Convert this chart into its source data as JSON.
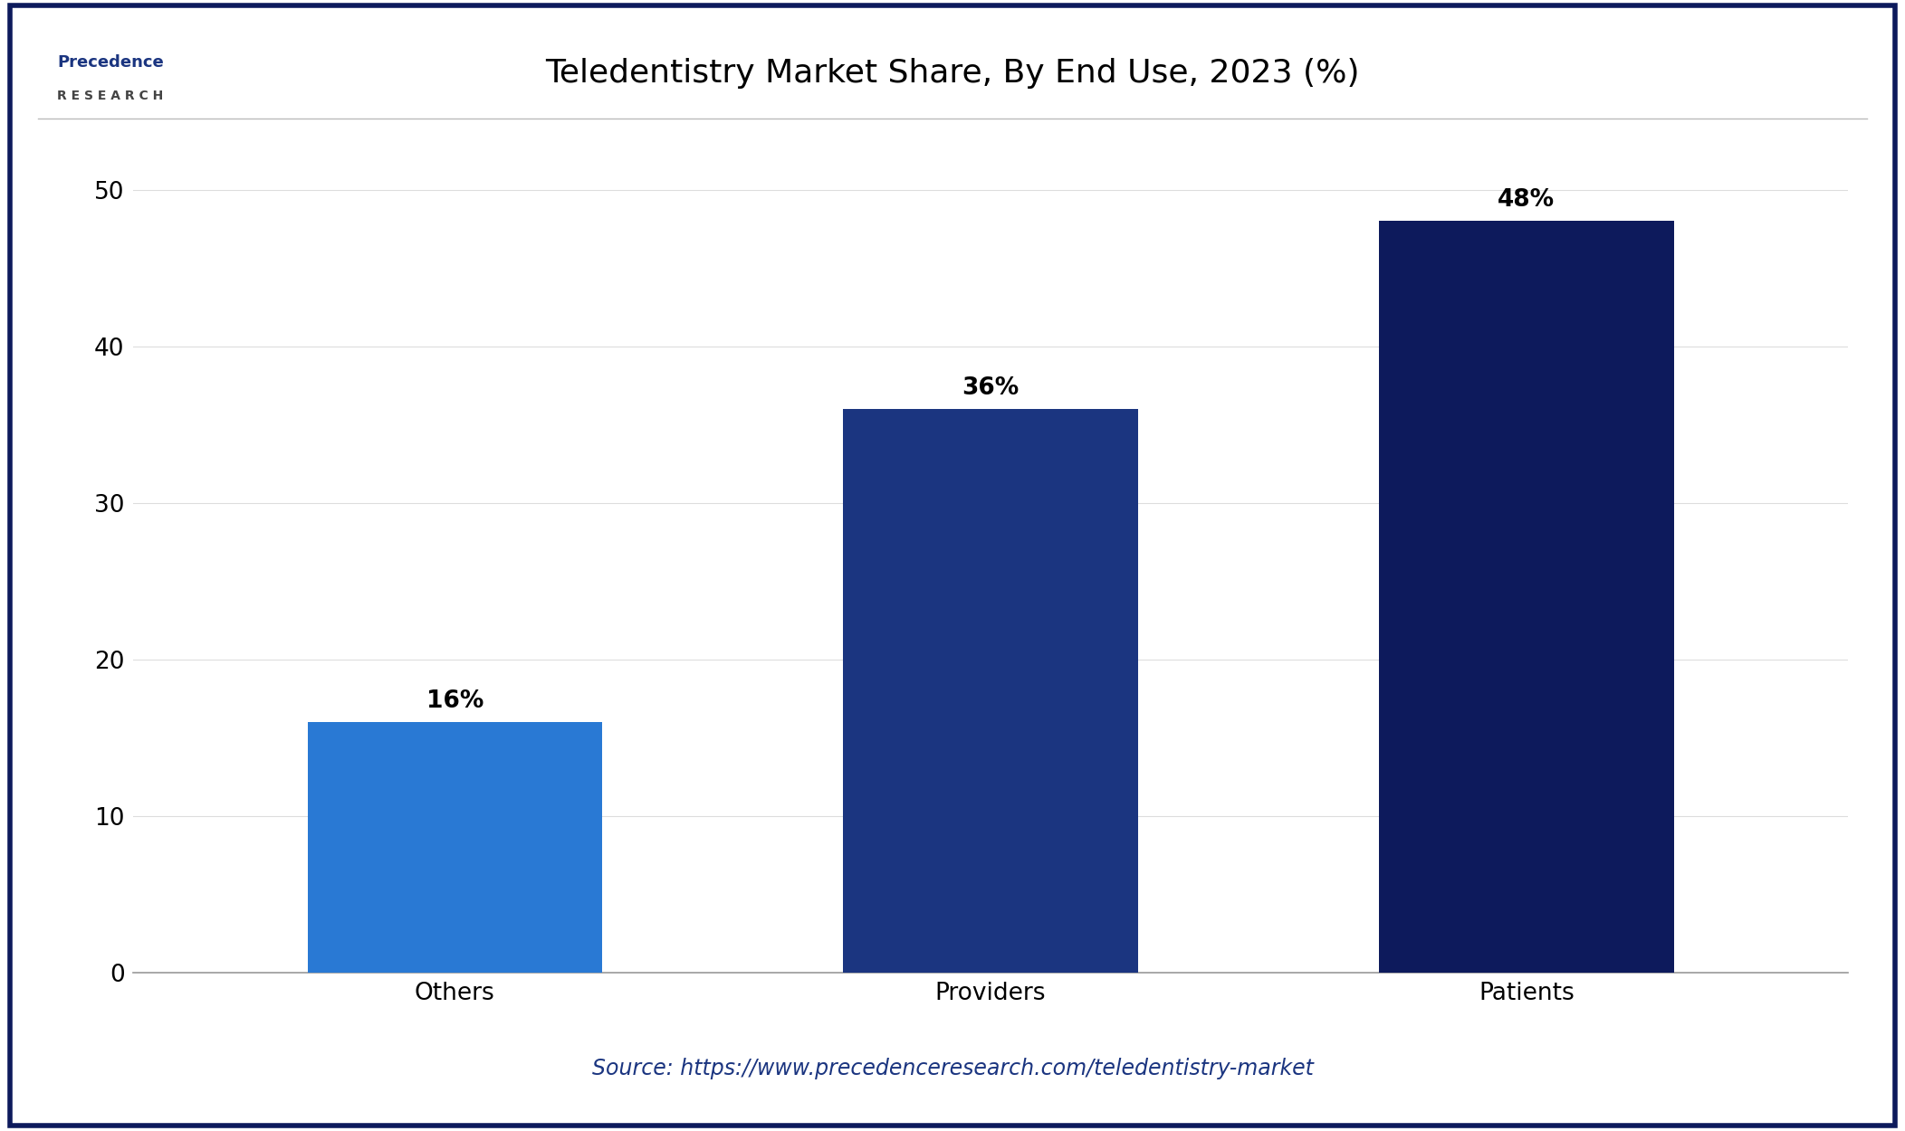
{
  "title": "Teledentistry Market Share, By End Use, 2023 (%)",
  "categories": [
    "Others",
    "Providers",
    "Patients"
  ],
  "values": [
    16,
    36,
    48
  ],
  "bar_colors": [
    "#2979D4",
    "#1B3580",
    "#0D1A5C"
  ],
  "labels": [
    "16%",
    "36%",
    "48%"
  ],
  "ylim": [
    0,
    52
  ],
  "yticks": [
    0,
    10,
    20,
    30,
    40,
    50
  ],
  "background_color": "#FFFFFF",
  "source_text": "Source: https://www.precedenceresearch.com/teledentistry-market",
  "title_fontsize": 26,
  "tick_fontsize": 19,
  "label_fontsize": 19,
  "source_fontsize": 17,
  "border_color": "#0D1A5C",
  "bar_width": 0.55,
  "grid_color": "#DDDDDD"
}
